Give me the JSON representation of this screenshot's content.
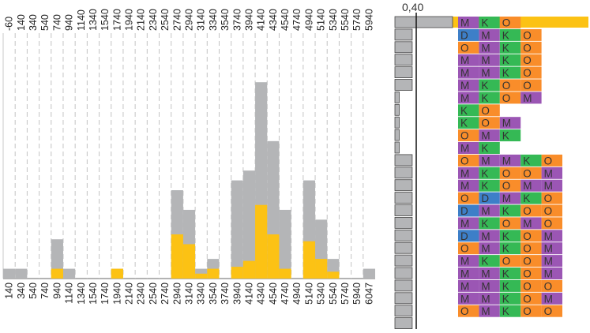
{
  "chart_data": [
    {
      "type": "bar",
      "stacked": false,
      "top_tick_labels": [
        "-60",
        "140",
        "340",
        "540",
        "740",
        "940",
        "1140",
        "1340",
        "1540",
        "1740",
        "1940",
        "2140",
        "2340",
        "2540",
        "2740",
        "2940",
        "3140",
        "3340",
        "3540",
        "3740",
        "3940",
        "4140",
        "4340",
        "4540",
        "4740",
        "4940",
        "5140",
        "5340",
        "5540",
        "5740",
        "5940"
      ],
      "bottom_tick_labels": [
        "140",
        "340",
        "540",
        "740",
        "940",
        "1140",
        "1340",
        "1540",
        "1740",
        "1940",
        "2140",
        "2340",
        "2540",
        "2740",
        "2940",
        "3140",
        "3340",
        "3540",
        "3740",
        "3940",
        "4140",
        "4340",
        "4540",
        "4740",
        "4940",
        "5140",
        "5340",
        "5540",
        "5740",
        "5940",
        "6047"
      ],
      "ylim": [
        0,
        25
      ],
      "grid": "vertical-dashed",
      "series": [
        {
          "color": "#b4b5b7",
          "values": [
            1,
            1,
            0,
            0,
            4,
            1,
            0,
            0,
            0,
            1,
            0,
            0,
            0,
            0,
            9,
            7,
            1,
            2,
            0,
            10,
            11,
            20,
            14,
            7,
            0,
            10,
            6,
            2,
            0,
            0,
            1
          ]
        },
        {
          "color": "#fcc214",
          "values": [
            0,
            0,
            0,
            0,
            1,
            0,
            0,
            0,
            0,
            1,
            0,
            0,
            0,
            0,
            4.5,
            3.5,
            0.5,
            1,
            0,
            1.2,
            1.8,
            7.5,
            4.5,
            1,
            0,
            3.8,
            2,
            0.7,
            0,
            0,
            0
          ]
        }
      ]
    },
    {
      "type": "table",
      "scale_label": "0,40",
      "bar_values": [
        0.4,
        0.12,
        0.12,
        0.12,
        0.12,
        0.12,
        0.03,
        0.03,
        0.03,
        0.03,
        0.03,
        0.12,
        0.12,
        0.12,
        0.12,
        0.12,
        0.12,
        0.12,
        0.12,
        0.12,
        0.12,
        0.12,
        0.12,
        0.12,
        0.12
      ],
      "colors": {
        "M": "#9b56b4",
        "K": "#35b955",
        "O": "#f98d2a",
        "D": "#3d7fc8",
        "extension": "#fcc214"
      },
      "rows": [
        {
          "cells": [
            "M",
            "K",
            "O"
          ],
          "extension": true
        },
        {
          "cells": [
            "D",
            "M",
            "K",
            "O"
          ]
        },
        {
          "cells": [
            "O",
            "M",
            "K",
            "O"
          ]
        },
        {
          "cells": [
            "M",
            "M",
            "K",
            "O"
          ]
        },
        {
          "cells": [
            "M",
            "M",
            "K",
            "O"
          ]
        },
        {
          "cells": [
            "M",
            "K",
            "O",
            "O"
          ]
        },
        {
          "cells": [
            "M",
            "K",
            "O",
            "M"
          ]
        },
        {
          "cells": [
            "K",
            "O"
          ]
        },
        {
          "cells": [
            "K",
            "O",
            "M"
          ]
        },
        {
          "cells": [
            "O",
            "M",
            "K"
          ]
        },
        {
          "cells": [
            "M",
            "K"
          ]
        },
        {
          "cells": [
            "O",
            "M",
            "M",
            "K",
            "O"
          ]
        },
        {
          "cells": [
            "M",
            "K",
            "O",
            "O",
            "M"
          ]
        },
        {
          "cells": [
            "M",
            "K",
            "O",
            "M",
            "M"
          ]
        },
        {
          "cells": [
            "O",
            "D",
            "M",
            "K",
            "O"
          ]
        },
        {
          "cells": [
            "D",
            "M",
            "K",
            "O",
            "O"
          ]
        },
        {
          "cells": [
            "M",
            "K",
            "O",
            "M",
            "O"
          ]
        },
        {
          "cells": [
            "D",
            "M",
            "K",
            "O",
            "M"
          ]
        },
        {
          "cells": [
            "O",
            "M",
            "K",
            "O",
            "M"
          ]
        },
        {
          "cells": [
            "M",
            "K",
            "O",
            "O",
            "M"
          ]
        },
        {
          "cells": [
            "M",
            "M",
            "K",
            "O",
            "M"
          ]
        },
        {
          "cells": [
            "M",
            "M",
            "K",
            "O",
            "O"
          ]
        },
        {
          "cells": [
            "M",
            "M",
            "K",
            "O",
            "M"
          ]
        },
        {
          "cells": [
            "O",
            "M",
            "K",
            "O",
            "O"
          ]
        }
      ]
    }
  ]
}
